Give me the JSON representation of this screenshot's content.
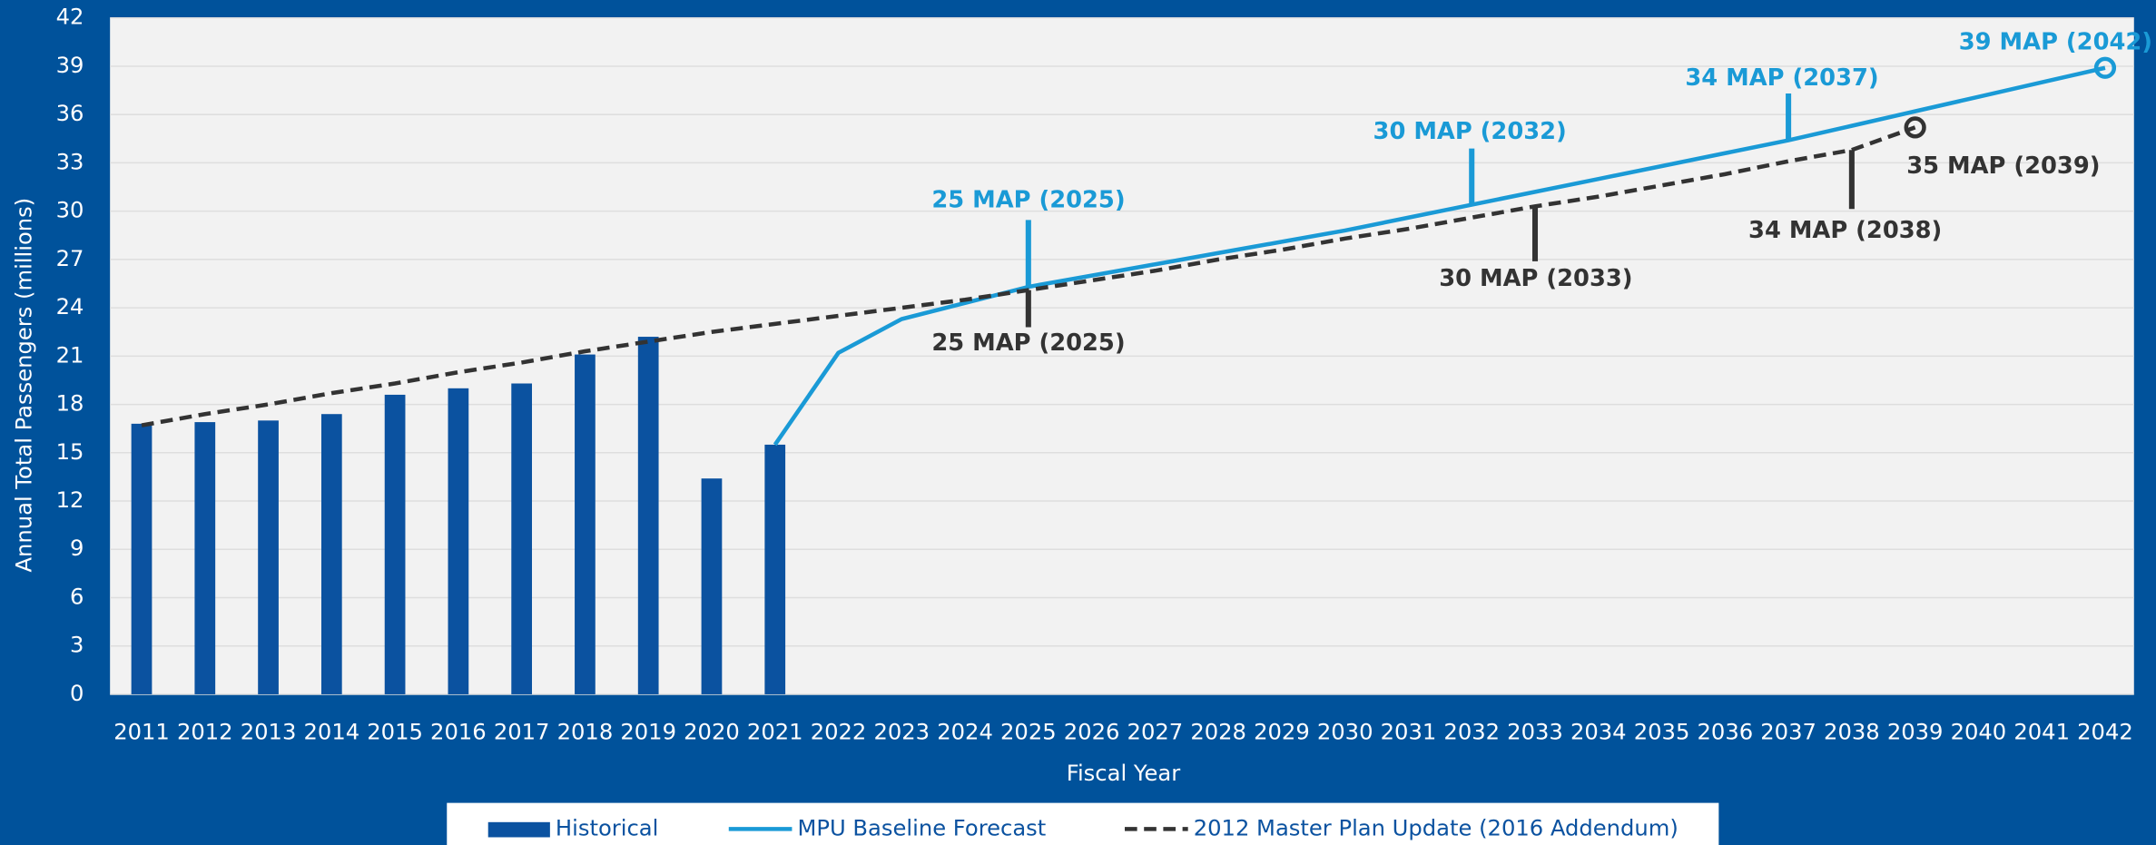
{
  "chart_data": {
    "type": "bar_line",
    "x_label": "Fiscal Year",
    "y_label": "Annual Total Passengers (millions)",
    "categories": [
      "2011",
      "2012",
      "2013",
      "2014",
      "2015",
      "2016",
      "2017",
      "2018",
      "2019",
      "2020",
      "2021",
      "2022",
      "2023",
      "2024",
      "2025",
      "2026",
      "2027",
      "2028",
      "2029",
      "2030",
      "2031",
      "2032",
      "2033",
      "2034",
      "2035",
      "2036",
      "2037",
      "2038",
      "2039",
      "2040",
      "2041",
      "2042"
    ],
    "series": [
      {
        "name": "Historical",
        "kind": "bar",
        "color": "#0b52a0",
        "values": [
          16.8,
          16.9,
          17.0,
          17.4,
          18.6,
          19.0,
          19.3,
          21.1,
          22.2,
          13.4,
          15.5,
          null,
          null,
          null,
          null,
          null,
          null,
          null,
          null,
          null,
          null,
          null,
          null,
          null,
          null,
          null,
          null,
          null,
          null,
          null,
          null,
          null
        ]
      },
      {
        "name": "MPU Baseline Forecast",
        "kind": "line",
        "color": "#1a9ad6",
        "values": [
          null,
          null,
          null,
          null,
          null,
          null,
          null,
          null,
          null,
          null,
          15.5,
          21.2,
          23.3,
          24.3,
          25.3,
          26.0,
          26.7,
          27.4,
          28.1,
          28.8,
          29.6,
          30.4,
          31.2,
          32.0,
          32.8,
          33.6,
          34.4,
          35.3,
          36.2,
          37.1,
          38.0,
          38.9
        ]
      },
      {
        "name": "2012 Master Plan Update (2016 Addendum)",
        "kind": "dashed",
        "color": "#333333",
        "values": [
          16.7,
          17.4,
          18.0,
          18.7,
          19.3,
          20.0,
          20.6,
          21.3,
          21.9,
          22.5,
          23.0,
          23.5,
          24.0,
          24.5,
          25.1,
          25.7,
          26.3,
          27.0,
          27.6,
          28.3,
          28.9,
          29.6,
          30.3,
          30.9,
          31.6,
          32.3,
          33.1,
          33.8,
          35.2,
          null,
          null,
          null
        ]
      }
    ],
    "annotations": [
      {
        "label": "25 MAP (2025)",
        "color": "#1a9ad6"
      },
      {
        "label": "25 MAP (2025)",
        "color": "#333333"
      },
      {
        "label": "30 MAP (2032)",
        "color": "#1a9ad6"
      },
      {
        "label": "30 MAP (2033)",
        "color": "#333333"
      },
      {
        "label": "34 MAP (2037)",
        "color": "#1a9ad6"
      },
      {
        "label": "34 MAP (2038)",
        "color": "#333333"
      },
      {
        "label": "39 MAP (2042)",
        "color": "#1a9ad6"
      },
      {
        "label": "35 MAP (2039)",
        "color": "#333333"
      }
    ],
    "ylim": [
      0,
      42
    ],
    "yticks": [
      0,
      3,
      6,
      9,
      12,
      15,
      18,
      21,
      24,
      27,
      30,
      33,
      36,
      39,
      42
    ],
    "grid": true,
    "legend": "bottom"
  }
}
